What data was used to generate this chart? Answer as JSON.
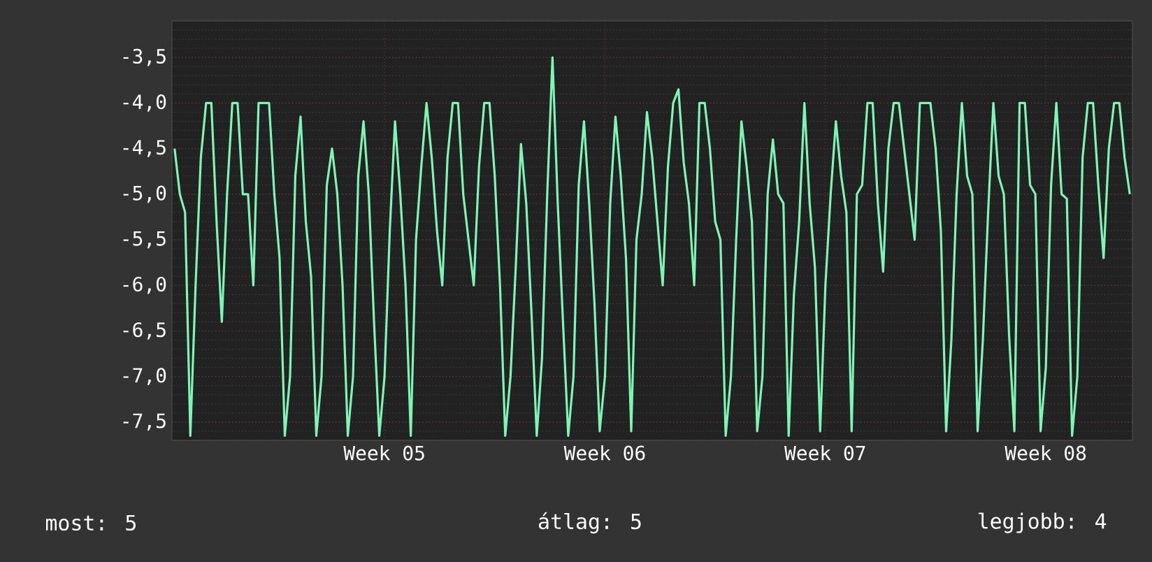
{
  "chart_data": {
    "type": "line",
    "categories": [
      null,
      null,
      null,
      null,
      null,
      null,
      null,
      null,
      null,
      null,
      null,
      null,
      null,
      null,
      null,
      null,
      null,
      null,
      null,
      null,
      null,
      null,
      null,
      null,
      null,
      null,
      null,
      null,
      null,
      null,
      null,
      null,
      null,
      null,
      null,
      null,
      null,
      null,
      null,
      null,
      "Week 05",
      null,
      null,
      null,
      null,
      null,
      null,
      null,
      null,
      null,
      null,
      null,
      null,
      null,
      null,
      null,
      null,
      null,
      null,
      null,
      null,
      null,
      null,
      null,
      null,
      null,
      null,
      null,
      null,
      null,
      null,
      null,
      null,
      null,
      null,
      null,
      null,
      null,
      null,
      null,
      null,
      null,
      "Week 06",
      null,
      null,
      null,
      null,
      null,
      null,
      null,
      null,
      null,
      null,
      null,
      null,
      null,
      null,
      null,
      null,
      null,
      null,
      null,
      null,
      null,
      null,
      null,
      null,
      null,
      null,
      null,
      null,
      null,
      null,
      null,
      null,
      null,
      null,
      null,
      null,
      null,
      null,
      null,
      null,
      null,
      "Week 07",
      null,
      null,
      null,
      null,
      null,
      null,
      null,
      null,
      null,
      null,
      null,
      null,
      null,
      null,
      null,
      null,
      null,
      null,
      null,
      null,
      null,
      null,
      null,
      null,
      null,
      null,
      null,
      null,
      null,
      null,
      null,
      null,
      null,
      null,
      null,
      null,
      null,
      null,
      null,
      null,
      null,
      "Week 08",
      null,
      null,
      null,
      null,
      null,
      null,
      null,
      null,
      null,
      null,
      null,
      null,
      null,
      null,
      null,
      null
    ],
    "series": [
      {
        "color": "#7df5b5",
        "values": [
          -4.5,
          -5.0,
          -5.2,
          -7.65,
          -6.0,
          -4.6,
          -4.0,
          -4.0,
          -5.3,
          -6.4,
          -5.0,
          -4.0,
          -4.0,
          -5.0,
          -5.0,
          -6.0,
          -4.0,
          -4.0,
          -4.0,
          -5.0,
          -5.7,
          -7.65,
          -7.0,
          -4.8,
          -4.15,
          -5.3,
          -5.9,
          -7.65,
          -7.0,
          -4.9,
          -4.5,
          -5.0,
          -6.0,
          -7.65,
          -7.0,
          -4.8,
          -4.2,
          -5.0,
          -6.4,
          -7.65,
          -7.0,
          -5.4,
          -4.2,
          -5.0,
          -6.0,
          -7.65,
          -5.5,
          -4.7,
          -4.0,
          -4.6,
          -5.4,
          -6.0,
          -4.6,
          -4.0,
          -4.0,
          -5.0,
          -5.5,
          -6.0,
          -4.7,
          -4.0,
          -4.0,
          -4.8,
          -6.0,
          -7.65,
          -7.0,
          -5.8,
          -4.45,
          -5.1,
          -6.3,
          -7.65,
          -6.8,
          -5.0,
          -3.5,
          -5.1,
          -6.4,
          -7.65,
          -7.0,
          -4.9,
          -4.2,
          -5.1,
          -6.2,
          -7.6,
          -7.0,
          -5.1,
          -4.15,
          -4.8,
          -5.7,
          -7.6,
          -5.5,
          -5.0,
          -4.1,
          -4.6,
          -5.3,
          -6.0,
          -4.7,
          -4.0,
          -3.85,
          -4.65,
          -5.1,
          -6.0,
          -4.0,
          -4.0,
          -4.5,
          -5.3,
          -5.5,
          -7.65,
          -7.0,
          -5.5,
          -4.2,
          -4.7,
          -5.3,
          -7.6,
          -7.0,
          -5.0,
          -4.4,
          -5.0,
          -5.1,
          -7.65,
          -6.1,
          -5.3,
          -4.0,
          -5.1,
          -5.8,
          -7.6,
          -6.0,
          -5.0,
          -4.2,
          -4.8,
          -5.2,
          -7.6,
          -5.0,
          -4.9,
          -4.0,
          -4.0,
          -5.1,
          -5.85,
          -4.5,
          -4.0,
          -4.0,
          -4.5,
          -5.0,
          -5.5,
          -4.0,
          -4.0,
          -4.0,
          -4.5,
          -5.4,
          -7.6,
          -6.6,
          -5.0,
          -4.0,
          -4.8,
          -5.0,
          -7.6,
          -6.6,
          -5.2,
          -4.0,
          -4.8,
          -5.0,
          -6.55,
          -7.6,
          -4.0,
          -4.0,
          -4.9,
          -5.0,
          -7.6,
          -6.9,
          -4.9,
          -4.0,
          -5.0,
          -5.05,
          -7.65,
          -7.0,
          -4.6,
          -4.0,
          -4.0,
          -4.9,
          -5.7,
          -4.5,
          -4.0,
          -4.0,
          -4.6,
          -5.0
        ]
      }
    ],
    "ylim": [
      -7.7,
      -3.1
    ],
    "yticks": [
      {
        "value": -3.5,
        "label": "-3,5"
      },
      {
        "value": -4.0,
        "label": "-4,0"
      },
      {
        "value": -4.5,
        "label": "-4,5"
      },
      {
        "value": -5.0,
        "label": "-5,0"
      },
      {
        "value": -5.5,
        "label": "-5,5"
      },
      {
        "value": -6.0,
        "label": "-6,0"
      },
      {
        "value": -6.5,
        "label": "-6,5"
      },
      {
        "value": -7.0,
        "label": "-7,0"
      },
      {
        "value": -7.5,
        "label": "-7,5"
      }
    ],
    "grid": true,
    "annotations": [
      "most: 5",
      "átlag: 5",
      "legjobb: 4"
    ]
  }
}
